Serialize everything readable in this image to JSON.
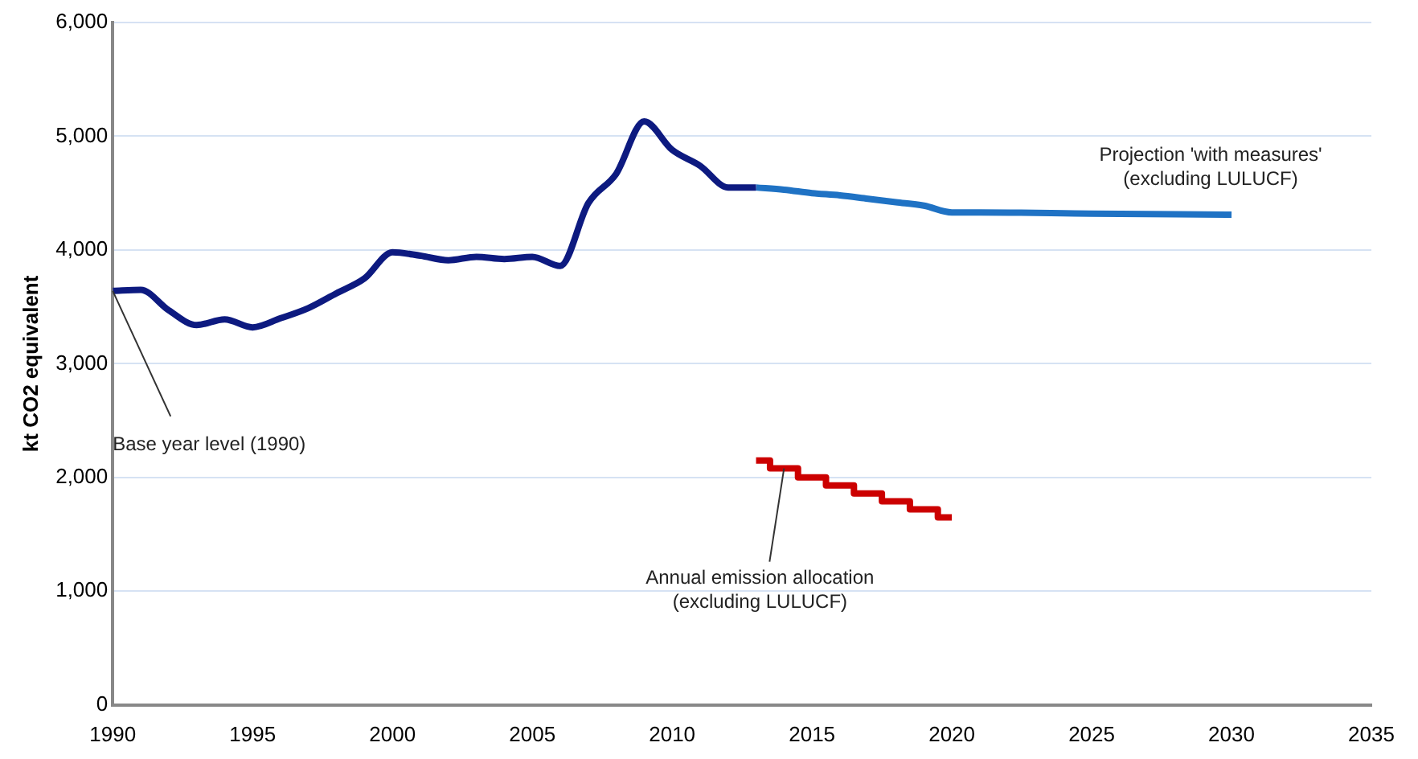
{
  "chart_data": {
    "type": "line",
    "ylabel": "kt CO2 equivalent",
    "xlim": [
      1990,
      2035
    ],
    "xticks": [
      1990,
      1995,
      2000,
      2005,
      2010,
      2015,
      2020,
      2025,
      2030,
      2035
    ],
    "ylim": [
      0,
      6000
    ],
    "yticks": [
      {
        "value": 0,
        "label": "0"
      },
      {
        "value": 1000,
        "label": "1,000"
      },
      {
        "value": 2000,
        "label": "2,000"
      },
      {
        "value": 3000,
        "label": "3,000"
      },
      {
        "value": 4000,
        "label": "4,000"
      },
      {
        "value": 5000,
        "label": "5,000"
      },
      {
        "value": 6000,
        "label": "6,000"
      }
    ],
    "grid": "y",
    "marker": "none",
    "series": [
      {
        "type": "line",
        "color": "#0d1a80",
        "x": [
          1990,
          1991,
          1992,
          1993,
          1994,
          1995,
          1996,
          1997,
          1998,
          1999,
          2000,
          2001,
          2002,
          2003,
          2004,
          2005,
          2006,
          2007,
          2008,
          2009,
          2010,
          2011,
          2012,
          2013
        ],
        "values": [
          3640,
          3650,
          3470,
          3340,
          3390,
          3320,
          3400,
          3490,
          3620,
          3750,
          3980,
          3950,
          3910,
          3940,
          3920,
          3940,
          3860,
          4410,
          4670,
          5130,
          4880,
          4740,
          4550,
          4550
        ]
      },
      {
        "type": "line",
        "color": "#1f72c4",
        "x": [
          2013,
          2014,
          2015,
          2016,
          2017,
          2018,
          2019,
          2020,
          2021,
          2025,
          2030
        ],
        "values": [
          4550,
          4530,
          4500,
          4480,
          4450,
          4420,
          4390,
          4330,
          4330,
          4320,
          4310
        ]
      },
      {
        "type": "step",
        "color": "#cc0000",
        "x": [
          2013,
          2014,
          2015,
          2016,
          2017,
          2018,
          2019,
          2020
        ],
        "values": [
          2150,
          2080,
          2000,
          1930,
          1860,
          1790,
          1720,
          1650
        ]
      }
    ],
    "annotations": [
      {
        "text": "Base year level (1990)",
        "x": 1990,
        "y": 3640
      },
      "Projection 'with measures'\n(excluding LULUCF)",
      {
        "text": "Annual emission allocation\n(excluding LULUCF)",
        "x": 2014,
        "y": 2080
      }
    ]
  }
}
